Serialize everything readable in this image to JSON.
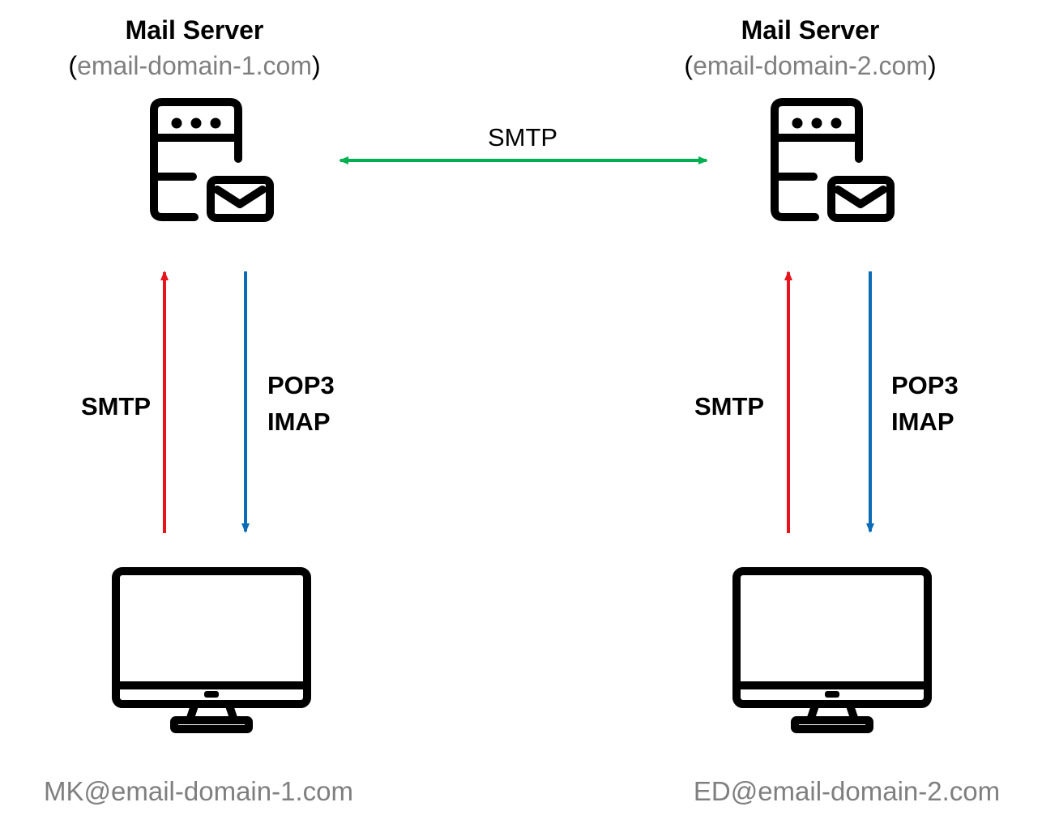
{
  "servers": [
    {
      "title": "Mail Server",
      "open_paren": "(",
      "domain": "email-domain-1.com",
      "close_paren": ")",
      "icon": "mail-server-icon"
    },
    {
      "title": "Mail Server",
      "open_paren": "(",
      "domain": "email-domain-2.com",
      "close_paren": ")",
      "icon": "mail-server-icon"
    }
  ],
  "server_link": {
    "label": "SMTP",
    "color": "#00b050"
  },
  "clients": [
    {
      "email": "MK@email-domain-1.com",
      "icon": "desktop-monitor-icon",
      "send_label": "SMTP",
      "receive_line1": "POP3",
      "receive_line2": "IMAP"
    },
    {
      "email": "ED@email-domain-2.com",
      "icon": "desktop-monitor-icon",
      "send_label": "SMTP",
      "receive_line1": "POP3",
      "receive_line2": "IMAP"
    }
  ],
  "colors": {
    "send_arrow": "#e8141c",
    "receive_arrow": "#0b6bb6",
    "muted_text": "#7f7f7f"
  }
}
